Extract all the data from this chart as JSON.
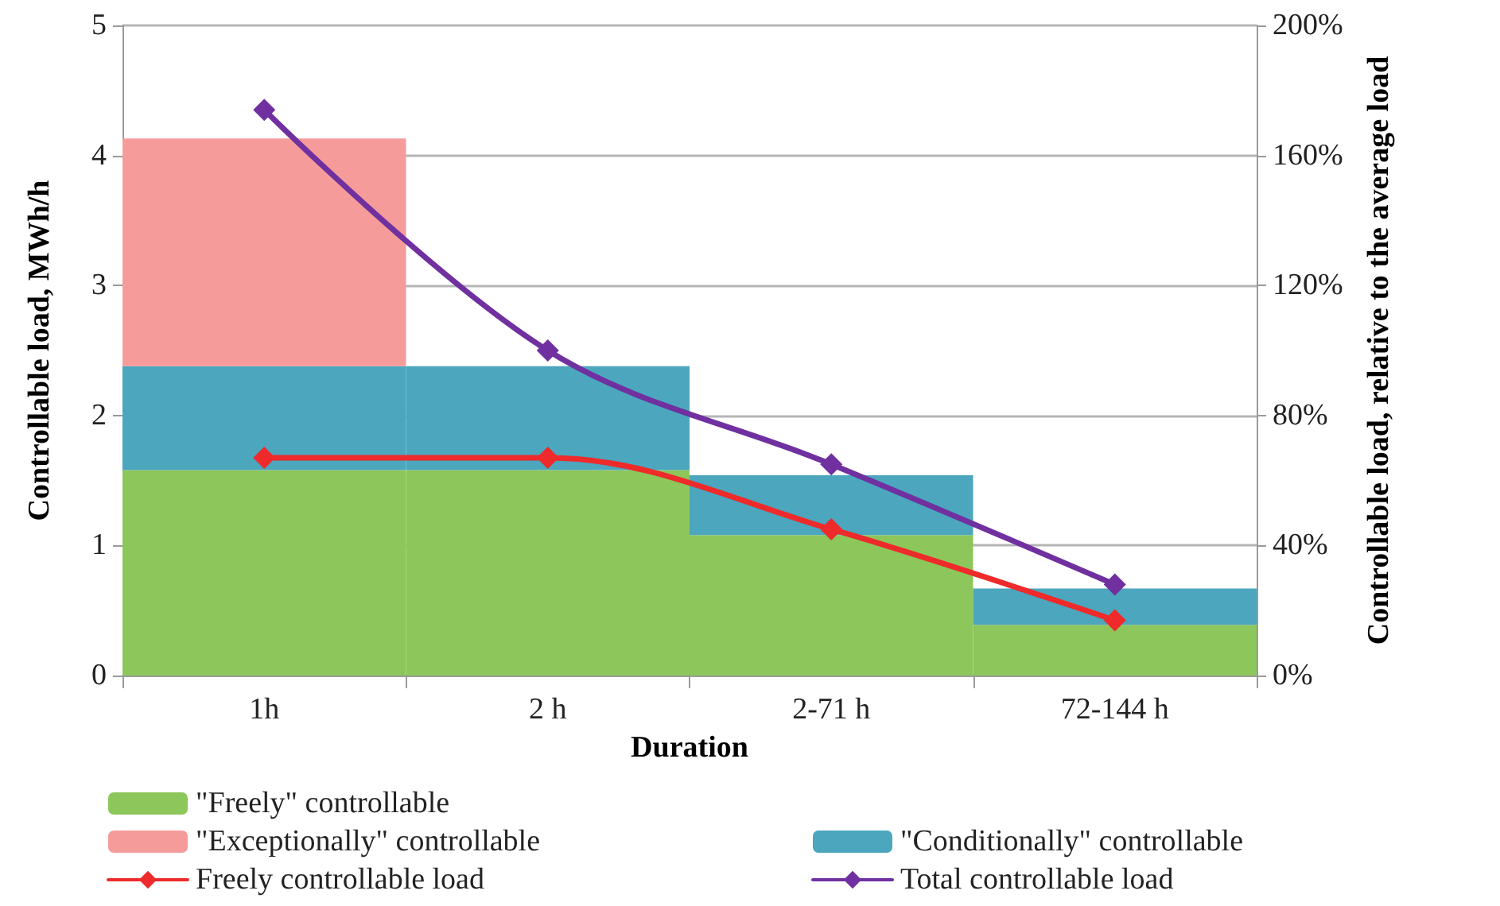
{
  "chart_data": {
    "type": "bar",
    "stacked": true,
    "xlabel": "Duration",
    "ylabel": "Controllable load, MWh/h",
    "y2label": "Controllable load, relative to the average load",
    "categories": [
      "1h",
      "2 h",
      "2-71 h",
      "72-144 h"
    ],
    "series": [
      {
        "name": "\"Freely\" controllable",
        "color": "#8dc65a",
        "values": [
          1.58,
          1.58,
          1.08,
          0.39
        ]
      },
      {
        "name": "\"Conditionally\" controllable",
        "color": "#4ba6be",
        "values": [
          0.8,
          0.8,
          0.46,
          0.28
        ]
      },
      {
        "name": "\"Exceptionally\" controllable",
        "color": "#f59c9b",
        "values": [
          1.75,
          null,
          null,
          null
        ]
      },
      {
        "name": "Total controllable load",
        "type": "line",
        "axis": "y2",
        "marker": "diamond",
        "color": "#7030a0",
        "values": [
          174,
          100,
          65,
          28
        ]
      },
      {
        "name": "Freely controllable load",
        "type": "line",
        "axis": "y2",
        "marker": "diamond",
        "color": "#ee2a2a",
        "values": [
          67,
          67,
          45,
          17
        ]
      }
    ],
    "ylim": [
      0,
      5
    ],
    "yticks": [
      0,
      1,
      2,
      3,
      4,
      5
    ],
    "y2lim": [
      0,
      200
    ],
    "y2ticks": [
      {
        "value": 0,
        "label": "0%"
      },
      {
        "value": 40,
        "label": "40%"
      },
      {
        "value": 80,
        "label": "80%"
      },
      {
        "value": 120,
        "label": "120%"
      },
      {
        "value": 160,
        "label": "160%"
      },
      {
        "value": 200,
        "label": "200%"
      }
    ],
    "grid": "y",
    "legend": "bottom"
  }
}
